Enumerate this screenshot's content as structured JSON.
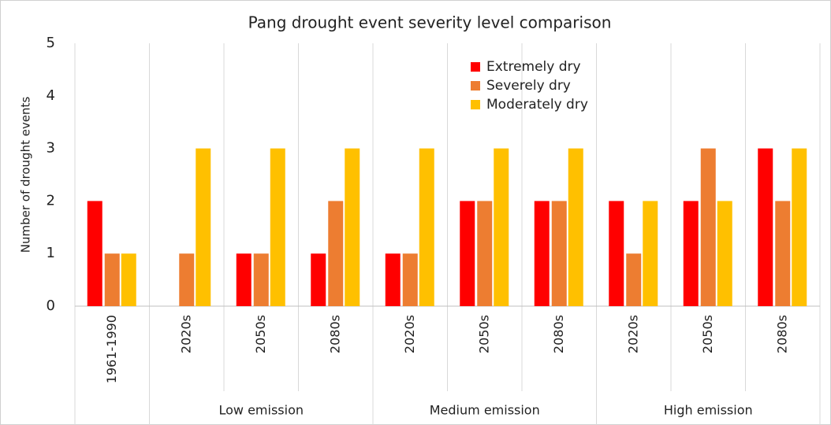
{
  "chart_data": {
    "type": "bar",
    "title": "Pang drought event severity level comparison",
    "y_label": "Number of drought events",
    "groups": [
      {
        "categories": [
          "1961-1990"
        ]
      },
      {
        "name": "Low emission",
        "categories": [
          "2020s",
          "2050s",
          "2080s"
        ]
      },
      {
        "name": "Medium emission",
        "categories": [
          "2020s",
          "2050s",
          "2080s"
        ]
      },
      {
        "name": "High emission",
        "categories": [
          "2020s",
          "2050s",
          "2080s"
        ]
      }
    ],
    "series": [
      {
        "name": "Extremely dry",
        "color": "#ff0000",
        "values": [
          2,
          0,
          1,
          1,
          1,
          2,
          2,
          2,
          2,
          3
        ]
      },
      {
        "name": "Severely dry",
        "color": "#ed7d31",
        "values": [
          1,
          1,
          1,
          2,
          1,
          2,
          2,
          1,
          3,
          2
        ]
      },
      {
        "name": "Moderately dry",
        "color": "#ffc000",
        "values": [
          1,
          3,
          3,
          3,
          3,
          3,
          3,
          2,
          2,
          3
        ]
      }
    ],
    "ylim": [
      0,
      5
    ],
    "yticks": [
      0,
      1,
      2,
      3,
      4,
      5
    ],
    "grid": false
  }
}
